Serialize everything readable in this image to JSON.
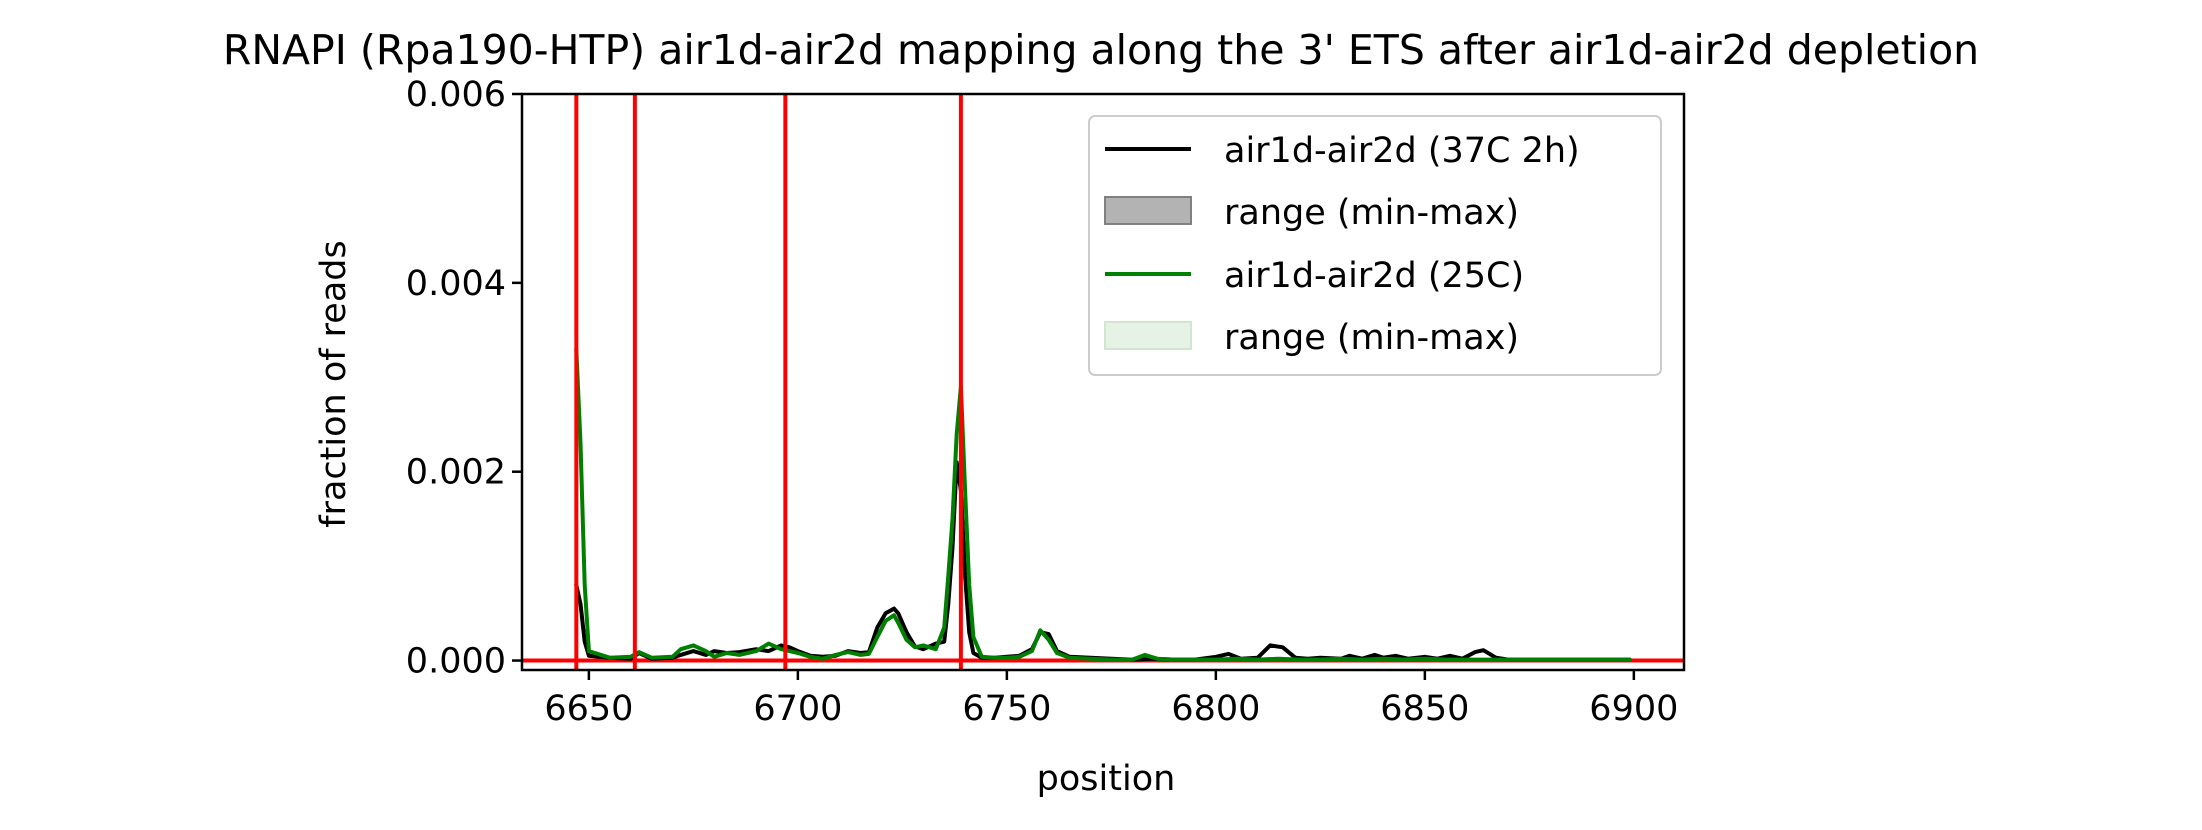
{
  "chart_data": {
    "type": "line",
    "title": "RNAPI (Rpa190-HTP) air1d-air2d mapping along the 3' ETS after air1d-air2d depletion",
    "xlabel": "position",
    "ylabel": "fraction of reads",
    "xlim": [
      6634,
      6912
    ],
    "ylim": [
      -0.0001,
      0.006
    ],
    "xticks": [
      6650,
      6700,
      6750,
      6800,
      6850,
      6900
    ],
    "xtick_labels": [
      "6650",
      "6700",
      "6750",
      "6800",
      "6850",
      "6900"
    ],
    "yticks": [
      0.0,
      0.002,
      0.004,
      0.006
    ],
    "ytick_labels": [
      "0.000",
      "0.002",
      "0.004",
      "0.006"
    ],
    "grid": false,
    "legend_position": "top-right",
    "vlines": [
      6647,
      6661,
      6697,
      6739
    ],
    "hline": 0.0,
    "reference_line_color": "#ff0000",
    "series": [
      {
        "name": "air1d-air2d (37C 2h)",
        "color": "#000000",
        "x": [
          6647,
          6648,
          6649,
          6650,
          6655,
          6660,
          6662,
          6665,
          6670,
          6672,
          6675,
          6678,
          6680,
          6683,
          6686,
          6690,
          6693,
          6696,
          6698,
          6700,
          6703,
          6706,
          6709,
          6712,
          6715,
          6717,
          6719,
          6721,
          6723,
          6724,
          6726,
          6728,
          6730,
          6733,
          6735,
          6736,
          6737,
          6738,
          6739,
          6740,
          6741,
          6742,
          6744,
          6747,
          6750,
          6753,
          6756,
          6758,
          6760,
          6762,
          6765,
          6770,
          6775,
          6780,
          6785,
          6790,
          6795,
          6800,
          6803,
          6806,
          6810,
          6813,
          6816,
          6819,
          6822,
          6825,
          6830,
          6832,
          6835,
          6838,
          6840,
          6843,
          6846,
          6850,
          6853,
          6856,
          6859,
          6862,
          6864,
          6867,
          6870,
          6875,
          6880,
          6885,
          6890,
          6895,
          6899
        ],
        "values": [
          0.0008,
          0.0006,
          0.0002,
          5e-05,
          3e-05,
          2e-05,
          8e-05,
          2e-05,
          3e-05,
          6e-05,
          0.0001,
          6e-05,
          0.0001,
          8e-05,
          9e-05,
          0.00012,
          0.0001,
          0.00016,
          0.00014,
          0.0001,
          5e-05,
          4e-05,
          5e-05,
          0.0001,
          8e-05,
          9e-05,
          0.00035,
          0.0005,
          0.00055,
          0.0005,
          0.0003,
          0.00015,
          0.00012,
          0.00018,
          0.0002,
          0.0006,
          0.0012,
          0.0021,
          0.0018,
          0.0009,
          0.0003,
          8e-05,
          3e-05,
          3e-05,
          4e-05,
          5e-05,
          0.00012,
          0.0003,
          0.00028,
          0.0001,
          4e-05,
          3e-05,
          2e-05,
          1e-05,
          2e-05,
          1e-05,
          1e-05,
          4e-05,
          7e-05,
          2e-05,
          3e-05,
          0.00016,
          0.00014,
          3e-05,
          2e-05,
          3e-05,
          2e-05,
          5e-05,
          2e-05,
          6e-05,
          3e-05,
          5e-05,
          2e-05,
          4e-05,
          2e-05,
          5e-05,
          2e-05,
          9e-05,
          0.00011,
          3e-05,
          1e-05,
          1e-05,
          1e-05,
          1e-05,
          1e-05,
          1e-05,
          1e-05
        ]
      },
      {
        "name": "range (min-max)",
        "color": "#808080",
        "type": "band"
      },
      {
        "name": "air1d-air2d (25C)",
        "color": "#008000",
        "x": [
          6647,
          6648,
          6649,
          6650,
          6655,
          6660,
          6662,
          6665,
          6670,
          6672,
          6675,
          6678,
          6680,
          6683,
          6686,
          6690,
          6693,
          6696,
          6698,
          6700,
          6703,
          6706,
          6709,
          6712,
          6715,
          6717,
          6719,
          6721,
          6723,
          6724,
          6726,
          6728,
          6730,
          6733,
          6735,
          6736,
          6737,
          6738,
          6739,
          6740,
          6741,
          6742,
          6744,
          6747,
          6750,
          6753,
          6756,
          6758,
          6760,
          6762,
          6765,
          6770,
          6775,
          6780,
          6783,
          6786,
          6790,
          6795,
          6800,
          6805,
          6810,
          6815,
          6820,
          6825,
          6830,
          6835,
          6840,
          6845,
          6850,
          6855,
          6860,
          6865,
          6870,
          6875,
          6880,
          6885,
          6890,
          6895,
          6899
        ],
        "values": [
          0.0033,
          0.0023,
          0.0008,
          0.0001,
          3e-05,
          4e-05,
          9e-05,
          3e-05,
          4e-05,
          0.00012,
          0.00016,
          0.0001,
          4e-05,
          8e-05,
          6e-05,
          0.0001,
          0.00018,
          0.00012,
          0.0001,
          8e-05,
          4e-05,
          2e-05,
          6e-05,
          9e-05,
          6e-05,
          7e-05,
          0.00025,
          0.00042,
          0.00048,
          0.0004,
          0.00022,
          0.00014,
          0.00016,
          0.00012,
          0.00035,
          0.0009,
          0.0015,
          0.0024,
          0.0029,
          0.0018,
          0.0008,
          0.00025,
          4e-05,
          3e-05,
          3e-05,
          4e-05,
          0.0001,
          0.00032,
          0.00022,
          8e-05,
          3e-05,
          2e-05,
          1e-05,
          1e-05,
          6e-05,
          2e-05,
          1e-05,
          1e-05,
          1e-05,
          2e-05,
          1e-05,
          2e-05,
          1e-05,
          1e-05,
          2e-05,
          1e-05,
          2e-05,
          1e-05,
          2e-05,
          1e-05,
          1e-05,
          1e-05,
          1e-05,
          1e-05,
          1e-05,
          1e-05,
          1e-05,
          1e-05,
          1e-05
        ]
      },
      {
        "name": "range (min-max)",
        "color": "#e6f2e6",
        "type": "band"
      }
    ]
  }
}
